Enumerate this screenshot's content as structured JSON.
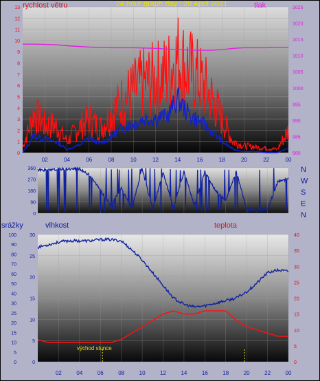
{
  "chart_data": [
    {
      "type": "line",
      "title": "24 hour graph day : 20 April 2021",
      "ylabel_left": "rychlost větru",
      "ylabel_right": "tlak",
      "ylim_left": [
        0,
        13
      ],
      "ylim_right": [
        980,
        1025
      ],
      "yticks_left": [
        "0",
        "1",
        "2",
        "3",
        "4",
        "5",
        "6",
        "7",
        "8",
        "9",
        "10",
        "11",
        "12",
        "13"
      ],
      "yticks_right": [
        "980",
        "985",
        "990",
        "995",
        "1000",
        "1005",
        "1010",
        "1015",
        "1020",
        "1025"
      ],
      "x_ticks": [
        "02",
        "04",
        "06",
        "08",
        "10",
        "12",
        "14",
        "16",
        "18",
        "20",
        "22",
        "00"
      ],
      "x": [
        0,
        1,
        2,
        3,
        4,
        5,
        6,
        7,
        8,
        9,
        10,
        11,
        12,
        13,
        14,
        15,
        16,
        17,
        18,
        19,
        20,
        21,
        22,
        23,
        24
      ],
      "series": [
        {
          "name": "gust",
          "color": "#ff1010",
          "values": [
            0.5,
            3.5,
            2.5,
            2.4,
            1.0,
            2.2,
            3.0,
            2.2,
            3.4,
            4.6,
            5.5,
            6.2,
            6.5,
            7.0,
            8.4,
            7.4,
            6.5,
            5.0,
            3.0,
            1.0,
            0.6,
            0.5,
            0.4,
            0.3,
            2.0
          ]
        },
        {
          "name": "average",
          "color": "#1020d0",
          "values": [
            0,
            1.5,
            1.2,
            1.0,
            0.3,
            0.6,
            1.3,
            0.8,
            1.4,
            2.2,
            2.6,
            3.0,
            3.1,
            3.2,
            4.8,
            3.4,
            2.8,
            2.0,
            1.0,
            0.3,
            0.1,
            0.1,
            0.0,
            0.0,
            0.4
          ]
        },
        {
          "name": "pressure",
          "color": "#e020e0",
          "values": [
            1013.5,
            1013.5,
            1013.4,
            1013.3,
            1013.0,
            1012.8,
            1012.6,
            1012.5,
            1012.4,
            1012.4,
            1012.4,
            1012.3,
            1012.2,
            1012.0,
            1011.8,
            1011.7,
            1011.6,
            1011.6,
            1011.8,
            1012.2,
            1012.4,
            1012.4,
            1012.4,
            1012.5,
            1012.5
          ]
        }
      ]
    },
    {
      "type": "line",
      "ylabels_right": [
        "N",
        "W",
        "S",
        "E",
        "N"
      ],
      "ylim": [
        0,
        360
      ],
      "yticks": [
        "0",
        "90",
        "180",
        "270",
        "360"
      ],
      "x": [
        0,
        1,
        2,
        3,
        4,
        5,
        6,
        7,
        8,
        9,
        10,
        11,
        12,
        13,
        14,
        15,
        16,
        17,
        18,
        19,
        20,
        21,
        22,
        23,
        24
      ],
      "series": [
        {
          "name": "wind direction",
          "color": "#1020a0",
          "values": [
            345,
            340,
            350,
            352,
            350,
            300,
            180,
            60,
            200,
            40,
            350,
            30,
            320,
            40,
            330,
            60,
            330,
            180,
            100,
            330,
            40,
            20,
            30,
            250,
            270
          ]
        }
      ]
    },
    {
      "type": "line",
      "ylabel_left_outer": "srážky",
      "ylabel_left_inner": "vlhkost",
      "ylabel_right": "teplota",
      "yticks_rain": [
        "0",
        "5",
        "10",
        "15",
        "20",
        "25",
        "30",
        "40",
        "50",
        "60",
        "70",
        "80",
        "90",
        "100"
      ],
      "yticks_humidity": [
        "0",
        "5",
        "10",
        "15",
        "20",
        "25",
        "30"
      ],
      "yticks_temp": [
        "0",
        "5",
        "10",
        "15",
        "20",
        "25",
        "30",
        "35",
        "40"
      ],
      "ylim_humidity": [
        0,
        100
      ],
      "ylim_temp": [
        0,
        40
      ],
      "x_ticks": [
        "02",
        "04",
        "06",
        "08",
        "10",
        "12",
        "14",
        "16",
        "18",
        "20",
        "22",
        "00"
      ],
      "annotation": "východ slunce",
      "x": [
        0,
        1,
        2,
        3,
        4,
        5,
        6,
        7,
        8,
        9,
        10,
        11,
        12,
        13,
        14,
        15,
        16,
        17,
        18,
        19,
        20,
        21,
        22,
        23,
        24
      ],
      "series": [
        {
          "name": "vlhkost",
          "color": "#1020a0",
          "values": [
            90,
            92,
            94,
            95,
            95,
            95,
            96,
            96,
            95,
            88,
            80,
            70,
            60,
            50,
            45,
            43,
            44,
            46,
            48,
            50,
            55,
            62,
            70,
            72,
            71
          ]
        },
        {
          "name": "teplota",
          "color": "#ff1010",
          "values": [
            7,
            6,
            6,
            6,
            6,
            6,
            6,
            6,
            7,
            9,
            11,
            13,
            15,
            16,
            15,
            15,
            16,
            16,
            16,
            13,
            11,
            10,
            9,
            8,
            8
          ]
        }
      ]
    }
  ]
}
